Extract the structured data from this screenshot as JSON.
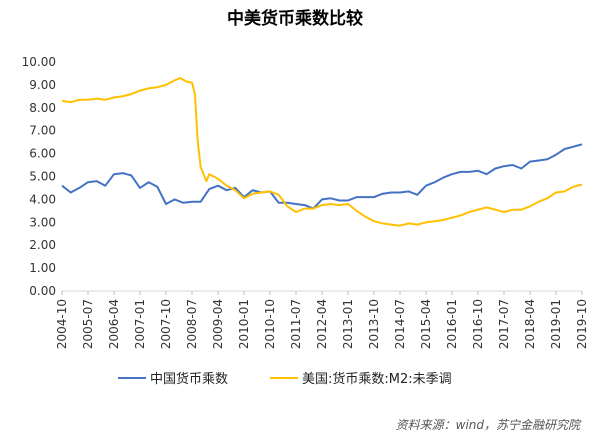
{
  "chart_data": {
    "type": "line",
    "title": "中美货币乘数比较",
    "xlabel": "",
    "ylabel": "",
    "ylim": [
      0,
      10
    ],
    "y_ticks": [
      "0.00",
      "1.00",
      "2.00",
      "3.00",
      "4.00",
      "5.00",
      "6.00",
      "7.00",
      "8.00",
      "9.00",
      "10.00"
    ],
    "x_ticks": [
      "2004-10",
      "2005-07",
      "2006-04",
      "2007-01",
      "2007-10",
      "2008-07",
      "2009-04",
      "2010-01",
      "2010-10",
      "2011-07",
      "2012-04",
      "2013-01",
      "2013-10",
      "2014-07",
      "2015-04",
      "2016-01",
      "2016-10",
      "2017-07",
      "2018-04",
      "2019-01",
      "2019-10"
    ],
    "grid": false,
    "legend_position": "bottom",
    "series": [
      {
        "name": "中国货币乘数",
        "color": "#4472c4",
        "points": [
          [
            "2004-10",
            4.6
          ],
          [
            "2005-01",
            4.3
          ],
          [
            "2005-04",
            4.5
          ],
          [
            "2005-07",
            4.75
          ],
          [
            "2005-10",
            4.8
          ],
          [
            "2006-01",
            4.6
          ],
          [
            "2006-04",
            5.1
          ],
          [
            "2006-07",
            5.15
          ],
          [
            "2006-10",
            5.05
          ],
          [
            "2007-01",
            4.5
          ],
          [
            "2007-04",
            4.75
          ],
          [
            "2007-07",
            4.55
          ],
          [
            "2007-10",
            3.8
          ],
          [
            "2008-01",
            4.0
          ],
          [
            "2008-04",
            3.85
          ],
          [
            "2008-07",
            3.9
          ],
          [
            "2008-10",
            3.9
          ],
          [
            "2009-01",
            4.45
          ],
          [
            "2009-04",
            4.6
          ],
          [
            "2009-07",
            4.4
          ],
          [
            "2009-10",
            4.5
          ],
          [
            "2010-01",
            4.1
          ],
          [
            "2010-04",
            4.4
          ],
          [
            "2010-07",
            4.3
          ],
          [
            "2010-10",
            4.35
          ],
          [
            "2011-01",
            3.85
          ],
          [
            "2011-04",
            3.85
          ],
          [
            "2011-07",
            3.8
          ],
          [
            "2011-10",
            3.75
          ],
          [
            "2012-01",
            3.6
          ],
          [
            "2012-04",
            4.0
          ],
          [
            "2012-07",
            4.05
          ],
          [
            "2012-10",
            3.95
          ],
          [
            "2013-01",
            3.95
          ],
          [
            "2013-04",
            4.1
          ],
          [
            "2013-07",
            4.1
          ],
          [
            "2013-10",
            4.1
          ],
          [
            "2014-01",
            4.25
          ],
          [
            "2014-04",
            4.3
          ],
          [
            "2014-07",
            4.3
          ],
          [
            "2014-10",
            4.35
          ],
          [
            "2015-01",
            4.2
          ],
          [
            "2015-04",
            4.6
          ],
          [
            "2015-07",
            4.75
          ],
          [
            "2015-10",
            4.95
          ],
          [
            "2016-01",
            5.1
          ],
          [
            "2016-04",
            5.2
          ],
          [
            "2016-07",
            5.2
          ],
          [
            "2016-10",
            5.25
          ],
          [
            "2017-01",
            5.1
          ],
          [
            "2017-04",
            5.35
          ],
          [
            "2017-07",
            5.45
          ],
          [
            "2017-10",
            5.5
          ],
          [
            "2018-01",
            5.35
          ],
          [
            "2018-04",
            5.65
          ],
          [
            "2018-07",
            5.7
          ],
          [
            "2018-10",
            5.75
          ],
          [
            "2019-01",
            5.95
          ],
          [
            "2019-04",
            6.2
          ],
          [
            "2019-07",
            6.3
          ],
          [
            "2019-10",
            6.4
          ]
        ]
      },
      {
        "name": "美国:货币乘数:M2:未季调",
        "color": "#ffc000",
        "points": [
          [
            "2004-10",
            8.3
          ],
          [
            "2005-01",
            8.25
          ],
          [
            "2005-04",
            8.35
          ],
          [
            "2005-07",
            8.35
          ],
          [
            "2005-10",
            8.4
          ],
          [
            "2006-01",
            8.35
          ],
          [
            "2006-04",
            8.45
          ],
          [
            "2006-07",
            8.5
          ],
          [
            "2006-10",
            8.6
          ],
          [
            "2007-01",
            8.75
          ],
          [
            "2007-04",
            8.85
          ],
          [
            "2007-07",
            8.9
          ],
          [
            "2007-10",
            9.0
          ],
          [
            "2008-01",
            9.2
          ],
          [
            "2008-03",
            9.3
          ],
          [
            "2008-05",
            9.15
          ],
          [
            "2008-07",
            9.1
          ],
          [
            "2008-08",
            8.6
          ],
          [
            "2008-09",
            6.5
          ],
          [
            "2008-10",
            5.4
          ],
          [
            "2008-12",
            4.8
          ],
          [
            "2009-01",
            5.1
          ],
          [
            "2009-04",
            4.9
          ],
          [
            "2009-07",
            4.6
          ],
          [
            "2009-10",
            4.4
          ],
          [
            "2010-01",
            4.05
          ],
          [
            "2010-04",
            4.25
          ],
          [
            "2010-07",
            4.3
          ],
          [
            "2010-10",
            4.35
          ],
          [
            "2011-01",
            4.2
          ],
          [
            "2011-04",
            3.7
          ],
          [
            "2011-07",
            3.45
          ],
          [
            "2011-10",
            3.6
          ],
          [
            "2012-01",
            3.6
          ],
          [
            "2012-04",
            3.75
          ],
          [
            "2012-07",
            3.8
          ],
          [
            "2012-10",
            3.75
          ],
          [
            "2013-01",
            3.8
          ],
          [
            "2013-04",
            3.5
          ],
          [
            "2013-07",
            3.25
          ],
          [
            "2013-10",
            3.05
          ],
          [
            "2014-01",
            2.95
          ],
          [
            "2014-04",
            2.9
          ],
          [
            "2014-07",
            2.85
          ],
          [
            "2014-10",
            2.95
          ],
          [
            "2015-01",
            2.9
          ],
          [
            "2015-04",
            3.0
          ],
          [
            "2015-07",
            3.05
          ],
          [
            "2015-10",
            3.1
          ],
          [
            "2016-01",
            3.2
          ],
          [
            "2016-04",
            3.3
          ],
          [
            "2016-07",
            3.45
          ],
          [
            "2016-10",
            3.55
          ],
          [
            "2017-01",
            3.65
          ],
          [
            "2017-04",
            3.55
          ],
          [
            "2017-07",
            3.45
          ],
          [
            "2017-10",
            3.55
          ],
          [
            "2018-01",
            3.55
          ],
          [
            "2018-04",
            3.7
          ],
          [
            "2018-07",
            3.9
          ],
          [
            "2018-10",
            4.05
          ],
          [
            "2019-01",
            4.3
          ],
          [
            "2019-04",
            4.35
          ],
          [
            "2019-07",
            4.55
          ],
          [
            "2019-10",
            4.65
          ]
        ]
      }
    ]
  },
  "source_note": "资料来源：wind，苏宁金融研究院"
}
